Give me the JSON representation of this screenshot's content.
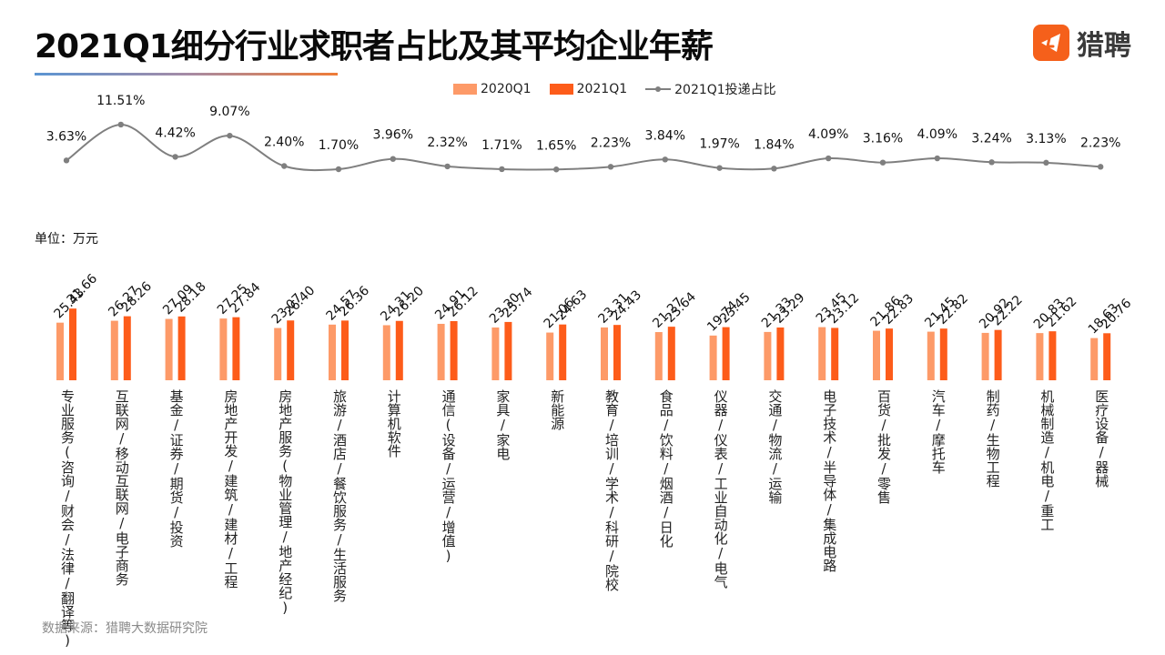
{
  "header": {
    "title": "2021Q1细分行业求职者占比及其平均企业年薪",
    "logo_text": "猎聘"
  },
  "legend": {
    "items": [
      {
        "label": "2020Q1",
        "color": "#fd9a68"
      },
      {
        "label": "2021Q1",
        "color": "#fd5c1a"
      },
      {
        "label": "2021Q1投递占比",
        "color": "#7f7f7f"
      }
    ]
  },
  "unit_label": "单位：万元",
  "source_label": "数据来源：猎聘大数据研究院",
  "chart_data": {
    "type": "bar",
    "title": "2021Q1细分行业求职者占比及其平均企业年薪",
    "ylabel": "单位：万元",
    "xlabel": "",
    "categories": [
      "专业服务(咨询/财会/法律/翻译等)",
      "互联网/移动互联网/电子商务",
      "基金/证券/期货/投资",
      "房地产开发/建筑/建材/工程",
      "房地产服务(物业管理/地产经纪)",
      "旅游/酒店/餐饮服务/生活服务",
      "计算机软件",
      "通信(设备/运营/增值)",
      "家具/家电",
      "新能源",
      "教育/培训/学术/科研/院校",
      "食品/饮料/烟酒/日化",
      "仪器/仪表/工业自动化/电气",
      "交通/物流/运输",
      "电子技术/半导体/集成电路",
      "百货/批发/零售",
      "汽车/摩托车",
      "制药/生物工程",
      "机械制造/机电/重工",
      "医疗设备/器械"
    ],
    "series": [
      {
        "name": "2020Q1",
        "type": "bar",
        "color": "#fd9a68",
        "values": [
          25.43,
          26.27,
          27.09,
          27.25,
          23.07,
          24.57,
          24.31,
          24.91,
          23.3,
          21.06,
          23.31,
          21.27,
          19.74,
          21.33,
          23.45,
          21.86,
          21.45,
          20.92,
          20.83,
          18.63
        ]
      },
      {
        "name": "2021Q1",
        "type": "bar",
        "color": "#fd5c1a",
        "values": [
          31.66,
          28.26,
          28.18,
          27.84,
          26.4,
          26.36,
          26.2,
          26.12,
          25.74,
          24.63,
          24.43,
          23.64,
          23.45,
          23.29,
          23.12,
          22.83,
          22.82,
          22.22,
          21.62,
          20.76
        ]
      },
      {
        "name": "2021Q1投递占比",
        "type": "line",
        "color": "#7f7f7f",
        "unit": "%",
        "values": [
          3.63,
          11.51,
          4.42,
          9.07,
          2.4,
          1.7,
          3.96,
          2.32,
          1.71,
          1.65,
          2.23,
          3.84,
          1.97,
          1.84,
          4.09,
          3.16,
          4.09,
          3.24,
          3.13,
          2.23
        ]
      }
    ],
    "legend_position": "top",
    "grid": false,
    "ylim": [
      0,
      35
    ]
  }
}
